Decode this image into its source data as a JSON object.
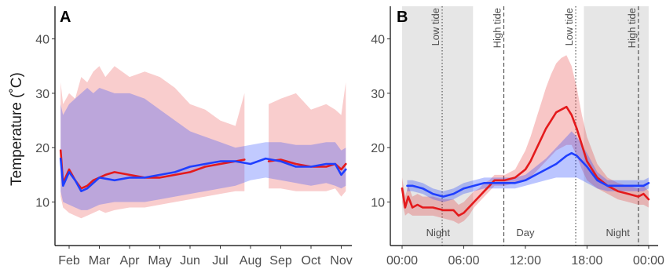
{
  "chart_data": [
    {
      "panel": "A",
      "type": "line",
      "ylabel": "Temperature (˚C)",
      "xlabel": "",
      "ylim": [
        2,
        46
      ],
      "yticks": [
        10,
        20,
        30,
        40
      ],
      "xticks": [
        "Feb",
        "Mar",
        "Apr",
        "May",
        "Jun",
        "Jul",
        "Aug",
        "Sep",
        "Oct",
        "Nov"
      ],
      "xlim_months": [
        0.6,
        10.3
      ],
      "grid": false,
      "series": [
        {
          "color": "#e41a1c",
          "x_month": [
            0.72,
            0.8,
            1.0,
            1.2,
            1.4,
            1.6,
            1.8,
            2.0,
            2.2,
            2.5,
            3.0,
            3.5,
            4.0,
            4.5,
            5.0,
            5.5,
            6.0,
            6.5,
            6.8
          ],
          "y": [
            19.5,
            13.5,
            16.0,
            14.0,
            12.5,
            13.0,
            14.0,
            14.5,
            15.0,
            15.5,
            15.0,
            14.5,
            14.5,
            15.0,
            15.5,
            16.5,
            17.0,
            17.5,
            17.8
          ],
          "band_low": [
            11.0,
            9.0,
            8.0,
            7.5,
            7.0,
            7.5,
            8.0,
            8.5,
            8.0,
            8.5,
            9.0,
            9.0,
            9.5,
            10.0,
            10.5,
            11.0,
            11.5,
            12.0,
            12.0
          ],
          "band_high": [
            32.0,
            28.0,
            30.0,
            29.0,
            33.0,
            32.0,
            34.0,
            35.0,
            33.0,
            35.0,
            33.0,
            34.0,
            33.0,
            31.0,
            28.0,
            27.0,
            25.0,
            24.0,
            30.0
          ]
        },
        {
          "color": "#e41a1c",
          "x_month": [
            7.6,
            8.0,
            8.5,
            9.0,
            9.5,
            9.8,
            10.0,
            10.15
          ],
          "y": [
            17.5,
            17.8,
            17.0,
            16.5,
            16.5,
            17.0,
            16.0,
            17.0
          ],
          "band_low": [
            12.5,
            12.5,
            12.0,
            12.0,
            12.0,
            12.5,
            11.0,
            12.0
          ],
          "band_high": [
            28.0,
            29.0,
            30.0,
            27.0,
            28.0,
            27.0,
            26.0,
            32.0
          ]
        },
        {
          "color": "#1f3fff",
          "x_month": [
            0.72,
            0.8,
            1.0,
            1.2,
            1.4,
            1.6,
            1.8,
            2.0,
            2.5,
            3.0,
            3.5,
            4.0,
            4.5,
            5.0,
            5.5,
            6.0,
            6.5,
            7.0,
            7.5,
            8.0,
            8.5,
            9.0,
            9.5,
            9.8,
            10.0,
            10.15
          ],
          "y": [
            18.0,
            13.0,
            15.5,
            14.0,
            12.0,
            12.5,
            13.5,
            14.5,
            14.0,
            14.5,
            14.5,
            15.0,
            15.5,
            16.5,
            17.0,
            17.5,
            17.5,
            17.0,
            18.0,
            17.5,
            16.5,
            16.5,
            17.0,
            17.0,
            15.0,
            16.0
          ],
          "band_low": [
            12.0,
            10.0,
            9.5,
            9.0,
            8.5,
            8.5,
            9.0,
            9.5,
            10.0,
            10.0,
            10.0,
            10.5,
            11.0,
            11.5,
            12.0,
            12.5,
            13.0,
            14.0,
            14.5,
            14.0,
            13.5,
            13.0,
            13.5,
            13.0,
            12.5,
            13.0
          ],
          "band_high": [
            28.0,
            26.0,
            28.0,
            29.0,
            30.0,
            31.0,
            30.0,
            31.0,
            30.0,
            30.0,
            29.0,
            27.0,
            25.0,
            23.0,
            22.0,
            21.0,
            20.0,
            20.5,
            21.0,
            21.0,
            20.5,
            20.5,
            21.0,
            21.0,
            19.5,
            20.0
          ]
        }
      ]
    },
    {
      "panel": "B",
      "type": "line",
      "ylabel": "",
      "xlabel": "",
      "ylim": [
        2,
        46
      ],
      "yticks": [
        10,
        20,
        30,
        40
      ],
      "xticks": [
        "00:00",
        "06:00",
        "12:00",
        "18:00",
        "00:00"
      ],
      "xtick_hours": [
        0,
        6,
        12,
        18,
        24
      ],
      "xlim_hours": [
        -1.0,
        24.5
      ],
      "grid": false,
      "shaded_regions": [
        {
          "from_hour": 0,
          "to_hour": 6.9,
          "label": "Night"
        },
        {
          "from_hour": 17.7,
          "to_hour": 24.0,
          "label": "Night"
        }
      ],
      "region_labels": [
        {
          "text": "Night",
          "hour": 3.5
        },
        {
          "text": "Day",
          "hour": 12.0
        },
        {
          "text": "Night",
          "hour": 21.0
        }
      ],
      "vlines": [
        {
          "hour": 3.9,
          "style": "dotted",
          "label": "Low tide"
        },
        {
          "hour": 9.9,
          "style": "dashed",
          "label": "High tide"
        },
        {
          "hour": 16.9,
          "style": "dotted",
          "label": "Low tide"
        },
        {
          "hour": 23.0,
          "style": "dashed",
          "label": "High tide"
        }
      ],
      "series": [
        {
          "color": "#e41a1c",
          "x": [
            0.0,
            0.3,
            0.6,
            1.0,
            1.5,
            2.0,
            3.0,
            4.0,
            5.0,
            5.5,
            6.0,
            6.5,
            7.0,
            7.5,
            8.0,
            8.5,
            9.0,
            10.0,
            11.0,
            12.0,
            12.5,
            13.0,
            13.5,
            14.0,
            14.5,
            15.0,
            15.5,
            16.0,
            16.5,
            17.0,
            17.5,
            18.0,
            19.0,
            20.0,
            21.0,
            22.0,
            23.0,
            23.5,
            24.0
          ],
          "y": [
            12.5,
            9.0,
            11.0,
            9.0,
            9.5,
            9.0,
            9.0,
            8.5,
            8.5,
            7.5,
            8.0,
            9.0,
            10.0,
            11.0,
            12.0,
            13.0,
            14.0,
            14.0,
            14.5,
            16.0,
            17.5,
            19.5,
            21.5,
            23.5,
            25.0,
            26.5,
            27.0,
            27.5,
            26.0,
            23.5,
            20.5,
            17.5,
            14.5,
            13.0,
            12.0,
            11.5,
            11.0,
            11.5,
            10.5
          ],
          "band_low": [
            10.0,
            7.5,
            8.0,
            7.5,
            7.5,
            7.5,
            7.5,
            7.0,
            6.5,
            6.0,
            6.5,
            7.5,
            9.0,
            10.0,
            11.0,
            12.0,
            13.0,
            13.0,
            13.5,
            14.0,
            14.5,
            15.5,
            16.5,
            17.5,
            18.5,
            19.5,
            20.0,
            20.5,
            20.5,
            18.5,
            16.0,
            14.0,
            12.5,
            11.5,
            10.5,
            10.0,
            9.5,
            9.5,
            9.0
          ],
          "band_high": [
            14.5,
            11.0,
            13.0,
            11.0,
            11.5,
            11.0,
            11.0,
            10.5,
            10.5,
            9.5,
            10.0,
            11.0,
            12.0,
            12.5,
            13.5,
            14.0,
            15.0,
            15.0,
            16.0,
            19.5,
            22.0,
            25.0,
            28.0,
            31.0,
            33.5,
            35.5,
            36.5,
            37.0,
            35.0,
            31.0,
            26.0,
            22.0,
            17.0,
            14.5,
            13.5,
            13.0,
            12.5,
            13.0,
            12.0
          ]
        },
        {
          "color": "#1f3fff",
          "x": [
            0.5,
            1.0,
            2.0,
            3.0,
            4.0,
            5.0,
            6.0,
            7.0,
            8.0,
            9.0,
            10.0,
            11.0,
            12.0,
            13.0,
            14.0,
            15.0,
            16.0,
            16.5,
            17.0,
            18.0,
            19.0,
            20.0,
            21.0,
            22.0,
            23.0,
            23.5,
            24.0
          ],
          "y": [
            13.0,
            13.0,
            12.5,
            11.5,
            11.0,
            11.5,
            12.5,
            13.0,
            13.5,
            13.5,
            13.5,
            13.5,
            14.0,
            15.0,
            16.0,
            17.0,
            18.5,
            19.0,
            18.5,
            16.5,
            14.0,
            13.0,
            13.0,
            13.0,
            13.0,
            13.0,
            13.5
          ],
          "band_low": [
            12.0,
            12.0,
            11.5,
            10.5,
            10.0,
            10.5,
            11.5,
            12.0,
            12.5,
            12.5,
            12.5,
            12.5,
            13.0,
            13.5,
            14.0,
            14.5,
            14.5,
            14.5,
            14.5,
            13.5,
            12.5,
            12.0,
            12.0,
            12.0,
            12.0,
            12.0,
            12.5
          ],
          "band_high": [
            14.0,
            14.0,
            13.5,
            12.5,
            12.0,
            12.5,
            13.5,
            14.0,
            14.5,
            14.5,
            14.5,
            14.5,
            15.0,
            16.5,
            18.0,
            20.0,
            22.0,
            23.0,
            22.0,
            19.0,
            15.5,
            14.0,
            14.0,
            14.0,
            14.0,
            14.0,
            14.5
          ]
        }
      ]
    }
  ],
  "panels": {
    "a_label": "A",
    "b_label": "B"
  }
}
